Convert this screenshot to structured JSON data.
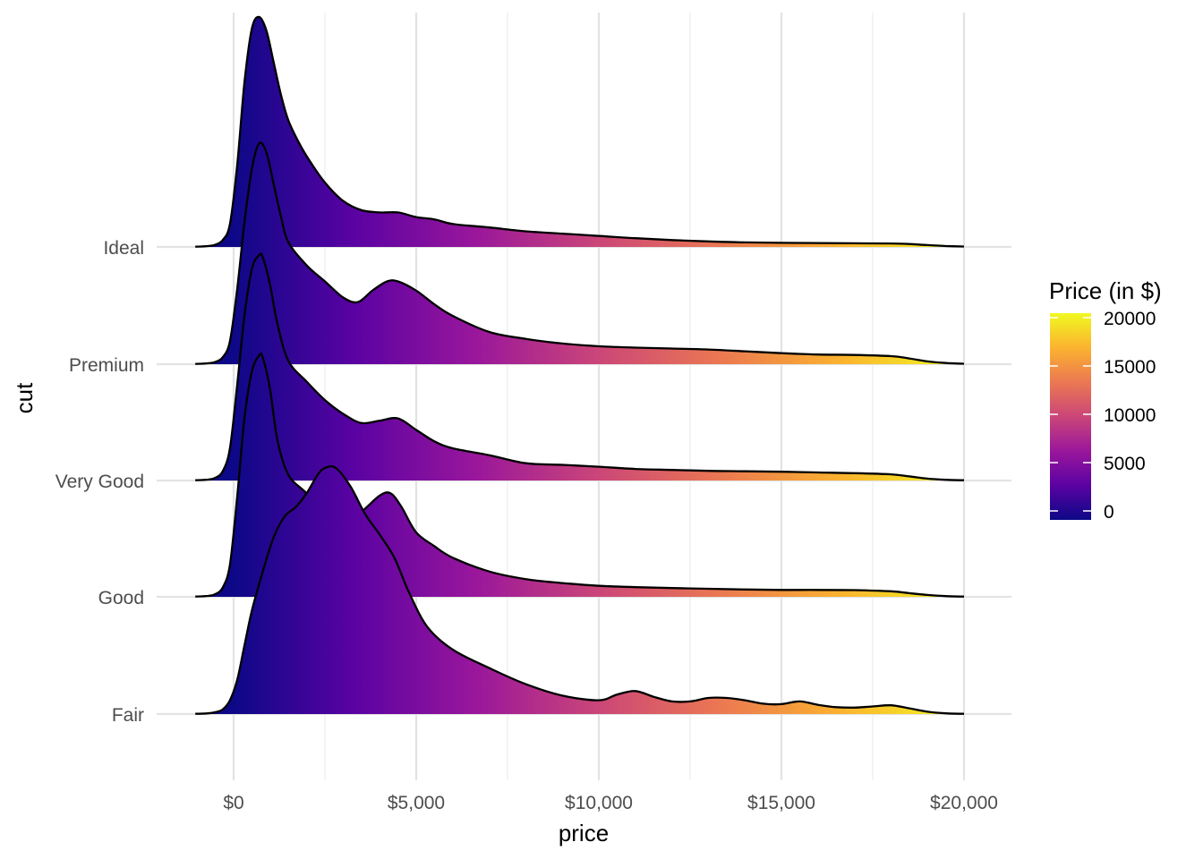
{
  "chart_data": {
    "type": "ridgeline",
    "title": "",
    "xlabel": "price",
    "ylabel": "cut",
    "xlim": [
      -1100,
      20200
    ],
    "x_ticks": [
      0,
      5000,
      10000,
      15000,
      20000
    ],
    "x_tick_labels": [
      "$0",
      "$5,000",
      "$10,000",
      "$15,000",
      "$20,000"
    ],
    "categories": [
      "Fair",
      "Good",
      "Very Good",
      "Premium",
      "Ideal"
    ],
    "grid": true,
    "fill_scale": {
      "title": "Price (in $)",
      "palette": "plasma",
      "range": [
        0,
        20000
      ],
      "breaks": [
        0,
        5000,
        10000,
        15000,
        20000
      ],
      "break_labels": [
        "0",
        "5000",
        "10000",
        "15000",
        "20000"
      ],
      "stops": [
        "#0d0887",
        "#5b02a3",
        "#9a179b",
        "#cb4678",
        "#eb7852",
        "#fbb32f",
        "#f0f921"
      ]
    },
    "legend_position": "right",
    "series": [
      {
        "name": "Ideal",
        "x": [
          -1050,
          -700,
          -500,
          -300,
          -100,
          100,
          300,
          500,
          700,
          900,
          1100,
          1300,
          1500,
          1800,
          2100,
          2500,
          3000,
          3500,
          4000,
          4500,
          5000,
          5500,
          6000,
          7000,
          8000,
          9000,
          10000,
          11000,
          12000,
          13000,
          14000,
          15000,
          16000,
          17000,
          18000,
          18500,
          19000,
          19500,
          20000
        ],
        "density": [
          0.001,
          0.004,
          0.01,
          0.03,
          0.1,
          0.36,
          0.72,
          0.95,
          1.0,
          0.94,
          0.8,
          0.66,
          0.55,
          0.45,
          0.37,
          0.28,
          0.2,
          0.16,
          0.15,
          0.15,
          0.13,
          0.12,
          0.1,
          0.085,
          0.068,
          0.058,
          0.048,
          0.038,
          0.03,
          0.024,
          0.02,
          0.018,
          0.017,
          0.016,
          0.015,
          0.013,
          0.008,
          0.004,
          0.002
        ]
      },
      {
        "name": "Premium",
        "x": [
          -1050,
          -700,
          -500,
          -300,
          -100,
          100,
          300,
          500,
          700,
          900,
          1100,
          1300,
          1500,
          2000,
          2500,
          3000,
          3400,
          3800,
          4200,
          4500,
          5000,
          5500,
          6000,
          7000,
          8000,
          9000,
          10000,
          11000,
          12000,
          13000,
          14000,
          15000,
          16000,
          17000,
          18000,
          18500,
          19000,
          19500,
          20000
        ],
        "density": [
          0.001,
          0.004,
          0.01,
          0.03,
          0.1,
          0.33,
          0.62,
          0.85,
          0.96,
          0.92,
          0.78,
          0.64,
          0.53,
          0.43,
          0.36,
          0.29,
          0.27,
          0.32,
          0.36,
          0.36,
          0.32,
          0.26,
          0.21,
          0.14,
          0.11,
          0.09,
          0.078,
          0.072,
          0.068,
          0.064,
          0.056,
          0.048,
          0.042,
          0.04,
          0.035,
          0.025,
          0.012,
          0.005,
          0.002
        ]
      },
      {
        "name": "Very Good",
        "x": [
          -1050,
          -700,
          -500,
          -300,
          -100,
          100,
          300,
          500,
          700,
          800,
          1000,
          1200,
          1500,
          2000,
          2500,
          3000,
          3500,
          4000,
          4500,
          5000,
          5500,
          6000,
          7000,
          8000,
          9000,
          10000,
          11000,
          12000,
          13000,
          14000,
          15000,
          16000,
          17000,
          18000,
          18500,
          19000,
          19500,
          20000
        ],
        "density": [
          0.001,
          0.004,
          0.012,
          0.04,
          0.14,
          0.42,
          0.72,
          0.92,
          0.98,
          0.97,
          0.85,
          0.68,
          0.52,
          0.43,
          0.35,
          0.29,
          0.25,
          0.26,
          0.27,
          0.22,
          0.17,
          0.14,
          0.11,
          0.075,
          0.068,
          0.06,
          0.05,
          0.046,
          0.042,
          0.04,
          0.038,
          0.035,
          0.032,
          0.027,
          0.018,
          0.008,
          0.003,
          0.001
        ]
      },
      {
        "name": "Good",
        "x": [
          -1050,
          -700,
          -500,
          -300,
          -100,
          100,
          300,
          500,
          700,
          800,
          1000,
          1200,
          1500,
          2000,
          2500,
          3000,
          3500,
          4000,
          4300,
          4600,
          5000,
          5500,
          6000,
          7000,
          8000,
          9000,
          10000,
          11000,
          12000,
          13000,
          14000,
          15000,
          16000,
          17000,
          18000,
          18500,
          19000,
          19500,
          20000
        ],
        "density": [
          0.001,
          0.004,
          0.012,
          0.04,
          0.14,
          0.44,
          0.78,
          0.98,
          1.05,
          1.04,
          0.9,
          0.68,
          0.53,
          0.45,
          0.36,
          0.32,
          0.37,
          0.44,
          0.45,
          0.39,
          0.28,
          0.22,
          0.17,
          0.11,
          0.077,
          0.06,
          0.048,
          0.042,
          0.038,
          0.035,
          0.032,
          0.03,
          0.03,
          0.029,
          0.024,
          0.016,
          0.008,
          0.003,
          0.001
        ]
      },
      {
        "name": "Fair",
        "x": [
          -1050,
          -700,
          -500,
          -300,
          -100,
          100,
          300,
          500,
          800,
          1100,
          1400,
          1700,
          2000,
          2300,
          2500,
          2800,
          3200,
          3600,
          4000,
          4400,
          4800,
          5300,
          6000,
          7000,
          8000,
          9000,
          10000,
          10500,
          11000,
          11500,
          12000,
          12500,
          13000,
          13500,
          14000,
          14500,
          15000,
          15500,
          16000,
          16500,
          17000,
          17500,
          18000,
          18500,
          19000,
          19500,
          20000
        ],
        "density": [
          0.001,
          0.003,
          0.008,
          0.02,
          0.06,
          0.15,
          0.3,
          0.45,
          0.62,
          0.77,
          0.86,
          0.9,
          0.96,
          1.04,
          1.07,
          1.07,
          0.99,
          0.87,
          0.78,
          0.68,
          0.53,
          0.38,
          0.28,
          0.2,
          0.13,
          0.08,
          0.06,
          0.085,
          0.1,
          0.075,
          0.055,
          0.055,
          0.07,
          0.07,
          0.06,
          0.045,
          0.043,
          0.055,
          0.04,
          0.03,
          0.028,
          0.033,
          0.038,
          0.025,
          0.01,
          0.003,
          0.001
        ]
      }
    ]
  }
}
